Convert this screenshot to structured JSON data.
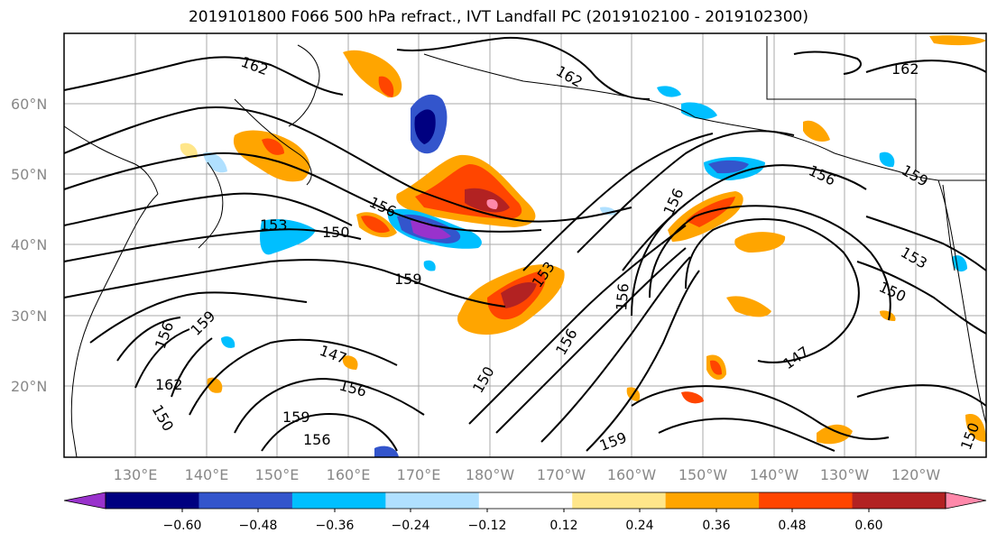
{
  "title": "2019101800 F066 500 hPa refract., IVT Landfall PC (2019102100 - 2019102300)",
  "lat_labels": [
    "60°N",
    "50°N",
    "40°N",
    "30°N",
    "20°N"
  ],
  "lon_labels": [
    "130°E",
    "140°E",
    "150°E",
    "160°E",
    "170°E",
    "180°W",
    "170°W",
    "160°W",
    "150°W",
    "140°W",
    "130°W",
    "120°W"
  ],
  "contour_labels": [
    "162",
    "162",
    "162",
    "156",
    "156",
    "159",
    "153",
    "150",
    "159",
    "156",
    "153",
    "159",
    "156",
    "156",
    "147",
    "156",
    "150",
    "159",
    "156",
    "162",
    "150",
    "159",
    "156",
    "153",
    "150",
    "147",
    "150"
  ],
  "colorbar": {
    "ticks": [
      "−0.60",
      "−0.48",
      "−0.36",
      "−0.24",
      "−0.12",
      "0.12",
      "0.24",
      "0.36",
      "0.48",
      "0.60"
    ],
    "colors": [
      "#9932cc",
      "#000080",
      "#3355cc",
      "#00bfff",
      "#b0e0ff",
      "#ffffff",
      "#ffe68a",
      "#ffa500",
      "#ff4500",
      "#b22222",
      "#ff88aa"
    ]
  }
}
